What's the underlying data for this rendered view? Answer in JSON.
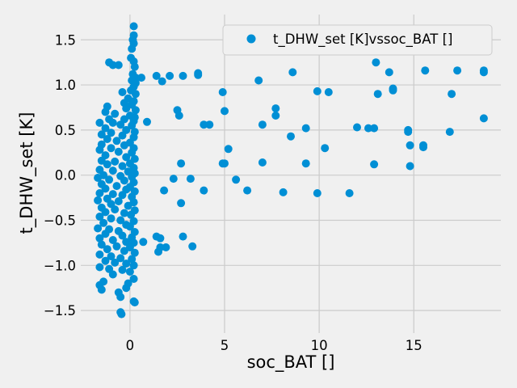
{
  "chart_data": {
    "type": "scatter",
    "title": "",
    "xlabel": "soc_BAT []",
    "ylabel": "t_DHW_set [K]",
    "xlim": [
      -2.6,
      19.6
    ],
    "ylim": [
      -1.75,
      1.78
    ],
    "xticks": [
      0,
      5,
      10,
      15
    ],
    "yticks": [
      -1.5,
      -1.0,
      -0.5,
      0.0,
      0.5,
      1.0,
      1.5
    ],
    "xtick_labels": [
      "0",
      "5",
      "10",
      "15"
    ],
    "ytick_labels": [
      "−1.5",
      "−1.0",
      "−0.5",
      "0.0",
      "0.5",
      "1.0",
      "1.5"
    ],
    "grid": true,
    "legend_position": "top-right",
    "colors": {
      "series": "#008fd5",
      "background": "#f0f0f0",
      "grid": "#cbcbcb"
    },
    "series": [
      {
        "name": "t_DHW_set [K]vssoc_BAT []",
        "points": [
          [
            0.2,
            1.65
          ],
          [
            0.2,
            1.55
          ],
          [
            0.15,
            1.5
          ],
          [
            0.2,
            1.46
          ],
          [
            0.1,
            1.4
          ],
          [
            0.05,
            1.3
          ],
          [
            0.2,
            1.26
          ],
          [
            -1.1,
            1.25
          ],
          [
            -0.9,
            1.22
          ],
          [
            -0.6,
            1.22
          ],
          [
            0.25,
            1.2
          ],
          [
            0.15,
            1.12
          ],
          [
            0.3,
            1.08
          ],
          [
            0.6,
            1.08
          ],
          [
            0.1,
            1.05
          ],
          [
            0.3,
            1.02
          ],
          [
            0.2,
            0.98
          ],
          [
            0.05,
            0.94
          ],
          [
            -0.4,
            0.92
          ],
          [
            0.3,
            0.9
          ],
          [
            -0.1,
            0.85
          ],
          [
            0.2,
            0.82
          ],
          [
            -0.3,
            0.8
          ],
          [
            0.1,
            0.78
          ],
          [
            -1.2,
            0.76
          ],
          [
            -0.2,
            0.74
          ],
          [
            0.3,
            0.72
          ],
          [
            -1.3,
            0.7
          ],
          [
            -0.8,
            0.68
          ],
          [
            0.0,
            0.66
          ],
          [
            0.25,
            0.64
          ],
          [
            -1.1,
            0.62
          ],
          [
            -0.3,
            0.62
          ],
          [
            0.2,
            0.6
          ],
          [
            -1.6,
            0.58
          ],
          [
            -0.9,
            0.58
          ],
          [
            -0.5,
            0.56
          ],
          [
            0.1,
            0.55
          ],
          [
            -1.3,
            0.52
          ],
          [
            -0.2,
            0.5
          ],
          [
            0.25,
            0.48
          ],
          [
            -1.0,
            0.47
          ],
          [
            -1.5,
            0.45
          ],
          [
            -0.4,
            0.44
          ],
          [
            0.2,
            0.42
          ],
          [
            -1.2,
            0.4
          ],
          [
            -0.7,
            0.38
          ],
          [
            0.0,
            0.36
          ],
          [
            -1.5,
            0.34
          ],
          [
            -0.3,
            0.33
          ],
          [
            0.2,
            0.3
          ],
          [
            -1.0,
            0.3
          ],
          [
            -1.6,
            0.28
          ],
          [
            -0.6,
            0.26
          ],
          [
            0.1,
            0.25
          ],
          [
            -1.3,
            0.22
          ],
          [
            -0.2,
            0.2
          ],
          [
            0.25,
            0.18
          ],
          [
            -1.5,
            0.16
          ],
          [
            -0.8,
            0.15
          ],
          [
            0.0,
            0.13
          ],
          [
            -1.2,
            0.12
          ],
          [
            -0.4,
            0.1
          ],
          [
            0.2,
            0.08
          ],
          [
            -1.6,
            0.06
          ],
          [
            -0.9,
            0.05
          ],
          [
            -0.1,
            0.04
          ],
          [
            0.25,
            0.02
          ],
          [
            -1.4,
            0.0
          ],
          [
            -0.5,
            -0.01
          ],
          [
            0.1,
            -0.02
          ],
          [
            -1.7,
            -0.03
          ],
          [
            -1.1,
            -0.05
          ],
          [
            -0.3,
            -0.06
          ],
          [
            0.2,
            -0.08
          ],
          [
            -1.5,
            -0.1
          ],
          [
            -0.7,
            -0.12
          ],
          [
            0.0,
            -0.13
          ],
          [
            -1.3,
            -0.15
          ],
          [
            -0.2,
            -0.16
          ],
          [
            0.25,
            -0.18
          ],
          [
            -1.6,
            -0.2
          ],
          [
            -0.9,
            -0.21
          ],
          [
            -0.4,
            -0.22
          ],
          [
            0.1,
            -0.24
          ],
          [
            -1.2,
            -0.26
          ],
          [
            -1.7,
            -0.28
          ],
          [
            -0.6,
            -0.29
          ],
          [
            0.2,
            -0.3
          ],
          [
            -1.0,
            -0.32
          ],
          [
            -0.1,
            -0.34
          ],
          [
            -1.5,
            -0.36
          ],
          [
            -0.8,
            -0.38
          ],
          [
            0.25,
            -0.39
          ],
          [
            -1.3,
            -0.41
          ],
          [
            -0.3,
            -0.42
          ],
          [
            0.05,
            -0.44
          ],
          [
            -1.6,
            -0.46
          ],
          [
            -1.0,
            -0.48
          ],
          [
            -0.5,
            -0.5
          ],
          [
            0.2,
            -0.51
          ],
          [
            -1.4,
            -0.53
          ],
          [
            -0.2,
            -0.55
          ],
          [
            0.0,
            -0.57
          ],
          [
            -1.7,
            -0.59
          ],
          [
            -1.1,
            -0.6
          ],
          [
            -0.6,
            -0.62
          ],
          [
            0.25,
            -0.63
          ],
          [
            -1.3,
            -0.65
          ],
          [
            -0.4,
            -0.67
          ],
          [
            0.1,
            -0.69
          ],
          [
            -1.6,
            -0.7
          ],
          [
            -0.9,
            -0.72
          ],
          [
            -0.2,
            -0.74
          ],
          [
            0.2,
            -0.75
          ],
          [
            -1.5,
            -0.77
          ],
          [
            -0.7,
            -0.79
          ],
          [
            0.0,
            -0.8
          ],
          [
            -1.2,
            -0.82
          ],
          [
            -0.3,
            -0.84
          ],
          [
            0.25,
            -0.86
          ],
          [
            -1.6,
            -0.88
          ],
          [
            -1.0,
            -0.9
          ],
          [
            -0.5,
            -0.92
          ],
          [
            0.1,
            -0.93
          ],
          [
            -1.3,
            -0.95
          ],
          [
            -0.8,
            -0.97
          ],
          [
            -0.2,
            -0.98
          ],
          [
            0.2,
            -1.0
          ],
          [
            -1.6,
            -1.02
          ],
          [
            -1.1,
            -1.04
          ],
          [
            -0.4,
            -1.05
          ],
          [
            0.0,
            -1.07
          ],
          [
            -0.9,
            -1.1
          ],
          [
            0.2,
            -1.15
          ],
          [
            -1.4,
            -1.18
          ],
          [
            -0.1,
            -1.2
          ],
          [
            -1.6,
            -1.22
          ],
          [
            -1.5,
            -1.27
          ],
          [
            -0.6,
            -1.3
          ],
          [
            -0.2,
            -1.25
          ],
          [
            -0.5,
            -1.35
          ],
          [
            0.2,
            -1.4
          ],
          [
            0.25,
            -1.41
          ],
          [
            -0.5,
            -1.52
          ],
          [
            -0.45,
            -1.54
          ],
          [
            0.7,
            -0.74
          ],
          [
            1.4,
            -0.68
          ],
          [
            1.6,
            -0.7
          ],
          [
            1.5,
            -0.85
          ],
          [
            1.6,
            -0.8
          ],
          [
            1.9,
            -0.8
          ],
          [
            2.8,
            -0.68
          ],
          [
            3.3,
            -0.79
          ],
          [
            1.8,
            -0.17
          ],
          [
            2.3,
            -0.04
          ],
          [
            2.7,
            -0.31
          ],
          [
            3.2,
            -0.04
          ],
          [
            3.9,
            -0.17
          ],
          [
            2.7,
            0.13
          ],
          [
            4.9,
            0.13
          ],
          [
            5.0,
            0.13
          ],
          [
            5.2,
            0.29
          ],
          [
            5.6,
            -0.05
          ],
          [
            6.2,
            -0.17
          ],
          [
            7.0,
            0.14
          ],
          [
            8.1,
            -0.19
          ],
          [
            9.3,
            0.13
          ],
          [
            9.9,
            -0.2
          ],
          [
            10.3,
            0.3
          ],
          [
            11.6,
            -0.2
          ],
          [
            12.9,
            0.12
          ],
          [
            14.8,
            0.1
          ],
          [
            14.8,
            0.33
          ],
          [
            15.5,
            0.33
          ],
          [
            15.5,
            0.31
          ],
          [
            14.7,
            0.5
          ],
          [
            14.7,
            0.48
          ],
          [
            12.6,
            0.52
          ],
          [
            12.9,
            0.52
          ],
          [
            12.0,
            0.53
          ],
          [
            9.3,
            0.52
          ],
          [
            8.5,
            0.43
          ],
          [
            7.0,
            0.56
          ],
          [
            7.7,
            0.66
          ],
          [
            7.7,
            0.74
          ],
          [
            5.0,
            0.71
          ],
          [
            4.2,
            0.56
          ],
          [
            3.9,
            0.56
          ],
          [
            2.5,
            0.72
          ],
          [
            2.6,
            0.66
          ],
          [
            0.9,
            0.59
          ],
          [
            4.9,
            0.92
          ],
          [
            6.8,
            1.05
          ],
          [
            8.6,
            1.14
          ],
          [
            9.9,
            0.93
          ],
          [
            10.5,
            0.92
          ],
          [
            13.0,
            1.25
          ],
          [
            13.1,
            0.9
          ],
          [
            13.7,
            1.14
          ],
          [
            13.9,
            0.96
          ],
          [
            13.9,
            0.94
          ],
          [
            15.6,
            1.16
          ],
          [
            17.0,
            0.9
          ],
          [
            17.3,
            1.16
          ],
          [
            16.9,
            0.48
          ],
          [
            18.7,
            1.16
          ],
          [
            18.7,
            1.14
          ],
          [
            18.7,
            0.63
          ],
          [
            1.4,
            1.1
          ],
          [
            1.7,
            1.04
          ],
          [
            2.1,
            1.1
          ],
          [
            2.8,
            1.1
          ],
          [
            3.6,
            1.13
          ],
          [
            3.6,
            1.11
          ]
        ]
      }
    ]
  }
}
